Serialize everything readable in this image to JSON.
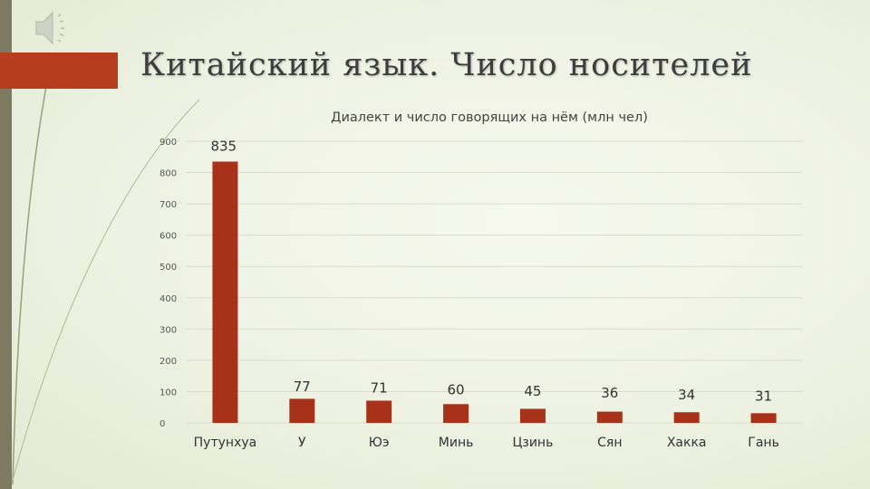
{
  "slide": {
    "title": "Китайский язык. Число носителей",
    "colors": {
      "accent": "#b83d1e",
      "strip": "#7d7a62",
      "bar": "#a8311a"
    },
    "icons": [
      "speaker-icon"
    ]
  },
  "chart_data": {
    "type": "bar",
    "title": "Диалект и число говорящих на нём (млн чел)",
    "xlabel": "",
    "ylabel": "",
    "ylim": [
      0,
      900
    ],
    "yticks": [
      0,
      100,
      200,
      300,
      400,
      500,
      600,
      700,
      800,
      900
    ],
    "grid": true,
    "legend": "none",
    "categories": [
      "Путунхуа",
      "У",
      "Юэ",
      "Минь",
      "Цзинь",
      "Сян",
      "Хакка",
      "Гань"
    ],
    "values": [
      835,
      77,
      71,
      60,
      45,
      36,
      34,
      31
    ]
  }
}
